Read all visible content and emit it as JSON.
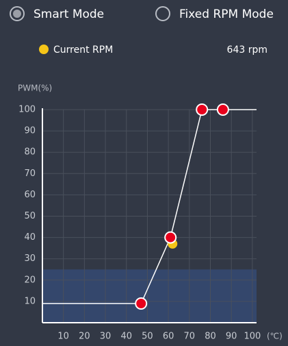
{
  "modes": [
    {
      "label": "Smart Mode",
      "selected": true
    },
    {
      "label": "Fixed RPM Mode",
      "selected": false
    }
  ],
  "current_rpm_value": "643 rpm",
  "chart_data": {
    "type": "line",
    "y_label": "PWM(%)",
    "x_label": "(℃)",
    "xlim": [
      0,
      102
    ],
    "ylim": [
      0,
      100
    ],
    "xticks": [
      10,
      20,
      30,
      40,
      50,
      60,
      70,
      80,
      90,
      100
    ],
    "yticks": [
      10,
      20,
      30,
      40,
      50,
      60,
      70,
      80,
      90,
      100
    ],
    "grid": true,
    "shade_ylim": [
      0,
      25
    ],
    "shade_color": "#34476c",
    "series": [
      {
        "type": "line",
        "color": "#ffffff",
        "x": [
          0,
          47,
          61,
          76,
          86,
          102
        ],
        "values": [
          9,
          9,
          40,
          100,
          100,
          100
        ]
      },
      {
        "type": "scatter",
        "color": "#e8001c",
        "x": [
          47,
          61,
          76,
          86
        ],
        "values": [
          9,
          40,
          100,
          100
        ]
      },
      {
        "type": "scatter",
        "name": "Current RPM",
        "color": "#f5c518",
        "x": [
          62
        ],
        "values": [
          37
        ]
      }
    ]
  }
}
